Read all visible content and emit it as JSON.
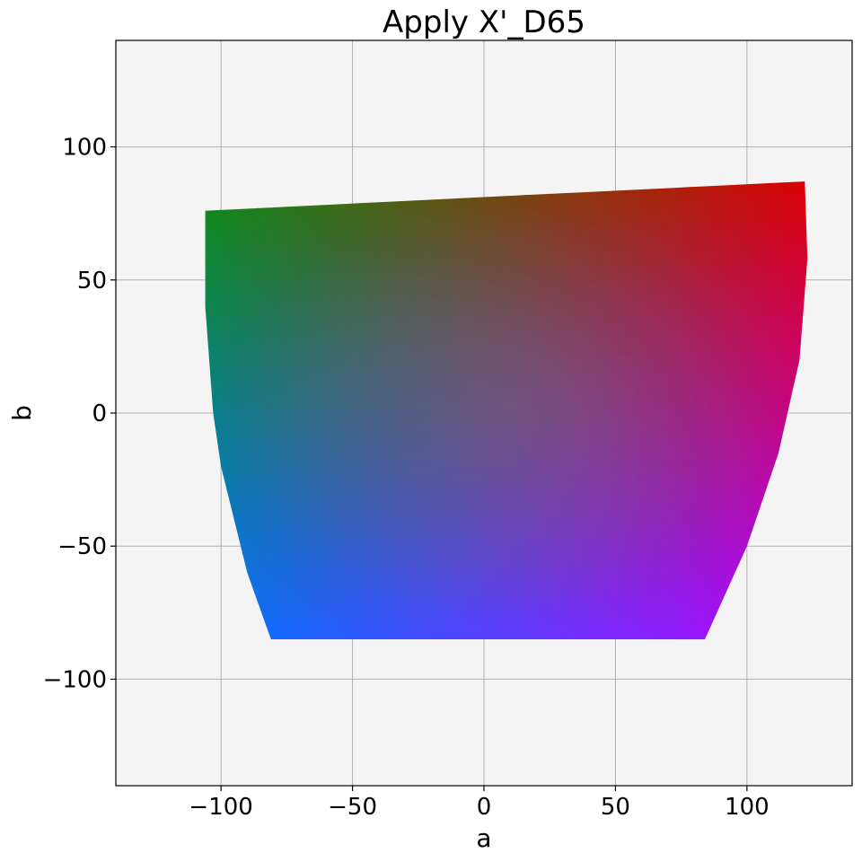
{
  "chart_data": {
    "type": "scatter",
    "title": "Apply X'_D65",
    "xlabel": "a",
    "ylabel": "b",
    "xlim": [
      -140,
      140
    ],
    "ylim": [
      -140,
      140
    ],
    "xticks": [
      -100,
      -50,
      0,
      50,
      100
    ],
    "yticks": [
      -100,
      -50,
      0,
      50,
      100
    ],
    "xtick_labels": [
      "−100",
      "−50",
      "0",
      "50",
      "100"
    ],
    "ytick_labels": [
      "−100",
      "−50",
      "0",
      "50",
      "100"
    ],
    "grid": true,
    "background": "#f4f4f4",
    "gamut_boundary": {
      "upper_left": [
        -106,
        76
      ],
      "upper_right": [
        122,
        87
      ],
      "right_edge": [
        [
          122,
          87
        ],
        [
          123,
          58
        ],
        [
          120,
          20
        ],
        [
          112,
          -15
        ],
        [
          100,
          -50
        ],
        [
          84,
          -85
        ]
      ],
      "bottom_right": [
        84,
        -85
      ],
      "bottom_left": [
        -81,
        -85
      ],
      "left_edge": [
        [
          -81,
          -85
        ],
        [
          -90,
          -60
        ],
        [
          -100,
          -20
        ],
        [
          -103,
          0
        ],
        [
          -106,
          40
        ],
        [
          -106,
          76
        ]
      ]
    },
    "corner_colors": {
      "top_left": "#118a0c",
      "top_right": "#dd0000",
      "bottom_left": "#0077ff",
      "bottom_right": "#bb00ff",
      "center": "#7a7a7a"
    }
  }
}
